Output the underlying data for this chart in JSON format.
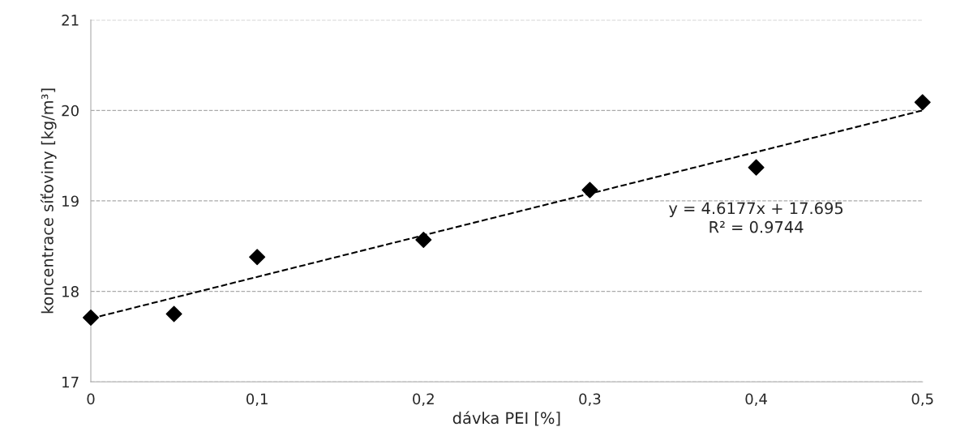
{
  "chart_data": {
    "type": "scatter",
    "xlabel": "dávka PEI [%]",
    "ylabel": "koncentrace síťoviny [kg/m³]",
    "series": [
      {
        "color": "#000000",
        "marker": "diamond",
        "x": [
          0,
          0.05,
          0.1,
          0.2,
          0.3,
          0.4,
          0.5
        ],
        "values": [
          17.71,
          17.75,
          18.38,
          18.57,
          19.12,
          19.37,
          20.09
        ]
      },
      {
        "type": "line",
        "color": "#000000",
        "line_style": "dashed",
        "marker": "none",
        "x": [
          0,
          0.5
        ],
        "values": [
          17.7,
          20.0
        ]
      }
    ],
    "annotations": [
      "y = 4.6177x + 17.695\nR² = 0.9744"
    ],
    "xlim": [
      0,
      0.5
    ],
    "ylim": [
      17,
      21
    ],
    "xticks": [
      0,
      {
        "value": 0.1,
        "label": "0,1"
      },
      {
        "value": 0.2,
        "label": "0,2"
      },
      {
        "value": 0.3,
        "label": "0,3"
      },
      {
        "value": 0.4,
        "label": "0,4"
      },
      {
        "value": 0.5,
        "label": "0,5"
      }
    ],
    "yticks": [
      17,
      18,
      19,
      20,
      21
    ],
    "grid": "y",
    "legend": false
  }
}
